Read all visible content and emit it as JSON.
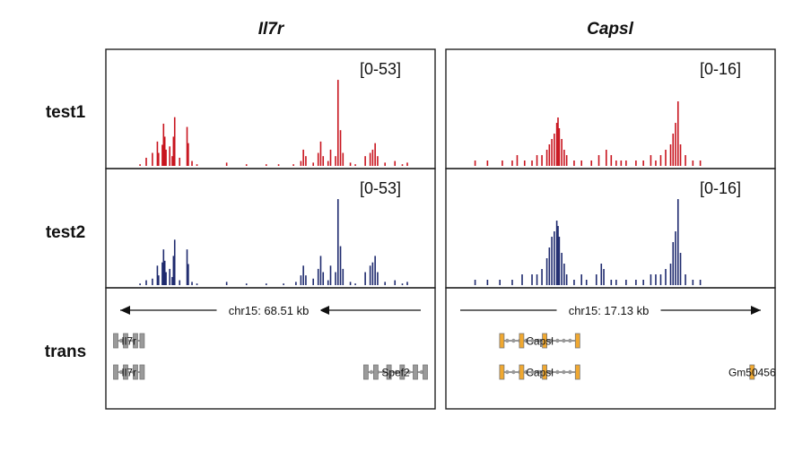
{
  "genes": [
    {
      "name": "Il7r",
      "scale_label": "chr15: 68.51 kb",
      "strand": "minus"
    },
    {
      "name": "Capsl",
      "scale_label": "chr15: 17.13 kb",
      "strand": "plus"
    }
  ],
  "tracks": [
    {
      "label": "test1",
      "color": "#c8141e"
    },
    {
      "label": "test2",
      "color": "#1e2a6e"
    }
  ],
  "annotation_label": "trans",
  "ranges": [
    [
      "[0-53]",
      "[0-53]"
    ],
    [
      "[0-16]",
      "[0-16]"
    ]
  ],
  "transcripts": [
    [
      [
        {
          "label": "Il7r",
          "start": 0.03,
          "end": 0.11,
          "color": "#9a9a9a",
          "exons": [
            0.03,
            0.06,
            0.09,
            0.11
          ]
        }
      ],
      [
        {
          "label": "Il7r",
          "start": 0.03,
          "end": 0.11,
          "color": "#9a9a9a",
          "exons": [
            0.03,
            0.06,
            0.09,
            0.11
          ]
        },
        {
          "label": "Spef2",
          "start": 0.79,
          "end": 0.97,
          "color": "#9a9a9a",
          "exons": [
            0.79,
            0.82,
            0.86,
            0.9,
            0.94,
            0.97
          ]
        }
      ]
    ],
    [
      [
        {
          "label": "Capsl",
          "start": 0.17,
          "end": 0.4,
          "color": "#f0a830",
          "exons": [
            0.17,
            0.23,
            0.3,
            0.4
          ]
        }
      ],
      [
        {
          "label": "Capsl",
          "start": 0.17,
          "end": 0.4,
          "color": "#f0a830",
          "exons": [
            0.17,
            0.23,
            0.3,
            0.4
          ]
        },
        {
          "label": "Gm50456",
          "start": 0.93,
          "end": 0.94,
          "color": "#f0a830",
          "exons": [
            0.93
          ]
        }
      ]
    ]
  ],
  "chart_data": {
    "type": "genome-tracks",
    "signal_max": [
      53,
      16
    ],
    "signals": [
      {
        "gene": "Il7r",
        "peaks_test1": [
          [
            0.07,
            1
          ],
          [
            0.095,
            5
          ],
          [
            0.12,
            8
          ],
          [
            0.14,
            15
          ],
          [
            0.145,
            8
          ],
          [
            0.16,
            13
          ],
          [
            0.165,
            26
          ],
          [
            0.17,
            18
          ],
          [
            0.175,
            10
          ],
          [
            0.19,
            12
          ],
          [
            0.2,
            6
          ],
          [
            0.205,
            18
          ],
          [
            0.21,
            30
          ],
          [
            0.23,
            5
          ],
          [
            0.26,
            24
          ],
          [
            0.265,
            14
          ],
          [
            0.28,
            3
          ],
          [
            0.3,
            1
          ],
          [
            0.42,
            2
          ],
          [
            0.5,
            1
          ],
          [
            0.58,
            1
          ],
          [
            0.63,
            1
          ],
          [
            0.69,
            1
          ],
          [
            0.72,
            3
          ],
          [
            0.73,
            10
          ],
          [
            0.74,
            6
          ],
          [
            0.77,
            2
          ],
          [
            0.79,
            8
          ],
          [
            0.8,
            15
          ],
          [
            0.81,
            6
          ],
          [
            0.83,
            3
          ],
          [
            0.84,
            10
          ],
          [
            0.86,
            6
          ],
          [
            0.87,
            53
          ],
          [
            0.88,
            22
          ],
          [
            0.89,
            8
          ],
          [
            0.92,
            2
          ],
          [
            0.94,
            1
          ],
          [
            0.98,
            6
          ],
          [
            1.0,
            8
          ],
          [
            1.01,
            10
          ],
          [
            1.02,
            14
          ],
          [
            1.03,
            6
          ],
          [
            1.06,
            2
          ],
          [
            1.1,
            3
          ],
          [
            1.13,
            1
          ],
          [
            1.15,
            2
          ]
        ],
        "peaks_test2": [
          [
            0.07,
            1
          ],
          [
            0.095,
            3
          ],
          [
            0.12,
            4
          ],
          [
            0.14,
            12
          ],
          [
            0.145,
            6
          ],
          [
            0.16,
            14
          ],
          [
            0.165,
            22
          ],
          [
            0.17,
            15
          ],
          [
            0.175,
            8
          ],
          [
            0.19,
            10
          ],
          [
            0.2,
            5
          ],
          [
            0.205,
            18
          ],
          [
            0.21,
            28
          ],
          [
            0.23,
            3
          ],
          [
            0.26,
            22
          ],
          [
            0.265,
            13
          ],
          [
            0.28,
            2
          ],
          [
            0.3,
            1
          ],
          [
            0.42,
            2
          ],
          [
            0.5,
            1
          ],
          [
            0.58,
            1
          ],
          [
            0.65,
            1
          ],
          [
            0.7,
            2
          ],
          [
            0.72,
            6
          ],
          [
            0.73,
            12
          ],
          [
            0.74,
            6
          ],
          [
            0.77,
            4
          ],
          [
            0.79,
            10
          ],
          [
            0.8,
            18
          ],
          [
            0.81,
            8
          ],
          [
            0.83,
            3
          ],
          [
            0.84,
            12
          ],
          [
            0.86,
            8
          ],
          [
            0.87,
            53
          ],
          [
            0.88,
            24
          ],
          [
            0.89,
            10
          ],
          [
            0.92,
            2
          ],
          [
            0.94,
            1
          ],
          [
            0.98,
            8
          ],
          [
            1.0,
            12
          ],
          [
            1.01,
            14
          ],
          [
            1.02,
            18
          ],
          [
            1.03,
            8
          ],
          [
            1.06,
            2
          ],
          [
            1.1,
            3
          ],
          [
            1.13,
            1
          ],
          [
            1.15,
            2
          ]
        ]
      },
      {
        "gene": "Capsl",
        "peaks_test1": [
          [
            0.05,
            1
          ],
          [
            0.1,
            1
          ],
          [
            0.16,
            1
          ],
          [
            0.2,
            1
          ],
          [
            0.22,
            2
          ],
          [
            0.25,
            1
          ],
          [
            0.28,
            1
          ],
          [
            0.3,
            2
          ],
          [
            0.32,
            2
          ],
          [
            0.34,
            3
          ],
          [
            0.35,
            4
          ],
          [
            0.36,
            5
          ],
          [
            0.37,
            6
          ],
          [
            0.38,
            8
          ],
          [
            0.385,
            9
          ],
          [
            0.39,
            7
          ],
          [
            0.4,
            5
          ],
          [
            0.41,
            3
          ],
          [
            0.42,
            2
          ],
          [
            0.45,
            1
          ],
          [
            0.48,
            1
          ],
          [
            0.52,
            1
          ],
          [
            0.55,
            2
          ],
          [
            0.58,
            3
          ],
          [
            0.6,
            2
          ],
          [
            0.62,
            1
          ],
          [
            0.64,
            1
          ],
          [
            0.66,
            1
          ],
          [
            0.7,
            1
          ],
          [
            0.73,
            1
          ],
          [
            0.76,
            2
          ],
          [
            0.78,
            1
          ],
          [
            0.8,
            2
          ],
          [
            0.82,
            3
          ],
          [
            0.84,
            4
          ],
          [
            0.85,
            6
          ],
          [
            0.86,
            8
          ],
          [
            0.87,
            12
          ],
          [
            0.88,
            4
          ],
          [
            0.9,
            2
          ],
          [
            0.93,
            1
          ],
          [
            0.96,
            1
          ]
        ],
        "peaks_test2": [
          [
            0.05,
            1
          ],
          [
            0.1,
            1
          ],
          [
            0.15,
            1
          ],
          [
            0.2,
            1
          ],
          [
            0.24,
            2
          ],
          [
            0.28,
            2
          ],
          [
            0.3,
            2
          ],
          [
            0.32,
            3
          ],
          [
            0.34,
            5
          ],
          [
            0.35,
            7
          ],
          [
            0.36,
            9
          ],
          [
            0.37,
            10
          ],
          [
            0.38,
            12
          ],
          [
            0.385,
            11
          ],
          [
            0.39,
            9
          ],
          [
            0.4,
            6
          ],
          [
            0.41,
            4
          ],
          [
            0.42,
            2
          ],
          [
            0.45,
            1
          ],
          [
            0.48,
            2
          ],
          [
            0.5,
            1
          ],
          [
            0.54,
            2
          ],
          [
            0.56,
            4
          ],
          [
            0.57,
            3
          ],
          [
            0.6,
            1
          ],
          [
            0.62,
            1
          ],
          [
            0.66,
            1
          ],
          [
            0.7,
            1
          ],
          [
            0.73,
            1
          ],
          [
            0.76,
            2
          ],
          [
            0.78,
            2
          ],
          [
            0.8,
            2
          ],
          [
            0.82,
            3
          ],
          [
            0.84,
            4
          ],
          [
            0.85,
            8
          ],
          [
            0.86,
            10
          ],
          [
            0.87,
            16
          ],
          [
            0.88,
            6
          ],
          [
            0.9,
            2
          ],
          [
            0.93,
            1
          ],
          [
            0.96,
            1
          ]
        ]
      }
    ]
  }
}
